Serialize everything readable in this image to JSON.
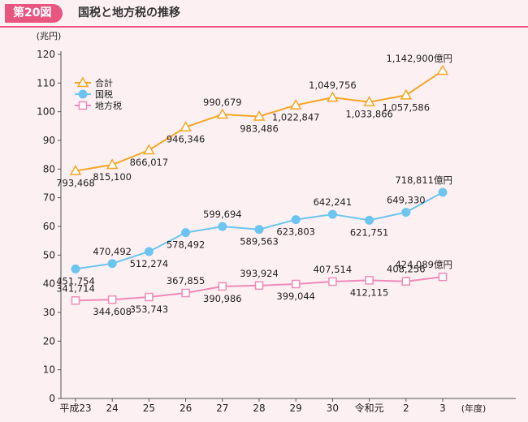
{
  "header": {
    "figure_label": "第20図",
    "title": "国税と地方税の推移"
  },
  "colors": {
    "total": "#f5a623",
    "national": "#6cc5ee",
    "local": "#f08ab8",
    "accent": "#e8557f"
  },
  "chart_data": {
    "type": "line",
    "title": "国税と地方税の推移",
    "ylabel": "(兆円)",
    "xlabel": "(年度)",
    "ylim": [
      0,
      120
    ],
    "yticks": [
      0,
      10,
      20,
      30,
      40,
      50,
      60,
      70,
      80,
      90,
      100,
      110,
      120
    ],
    "categories": [
      "平成23",
      "24",
      "25",
      "26",
      "27",
      "28",
      "29",
      "30",
      "令和元",
      "2",
      "3"
    ],
    "series": [
      {
        "name": "合計",
        "marker": "triangle",
        "values": [
          79.3468,
          81.51,
          86.6017,
          94.6346,
          99.0679,
          98.3486,
          102.2847,
          104.9756,
          103.3866,
          105.7586,
          114.29
        ],
        "labels": [
          "793,468",
          "815,100",
          "866,017",
          "946,346",
          "990,679",
          "983,486",
          "1,022,847",
          "1,049,756",
          "1,033,866",
          "1,057,586",
          "1,142,900億円"
        ]
      },
      {
        "name": "国税",
        "marker": "circle",
        "values": [
          45.1754,
          47.0492,
          51.2274,
          57.8492,
          59.9694,
          58.9563,
          62.3803,
          64.2241,
          62.1751,
          64.933,
          71.8811
        ],
        "labels": [
          "451,754",
          "470,492",
          "512,274",
          "578,492",
          "599,694",
          "589,563",
          "623,803",
          "642,241",
          "621,751",
          "649,330",
          "718,811億円"
        ]
      },
      {
        "name": "地方税",
        "marker": "square",
        "values": [
          34.1714,
          34.4608,
          35.3743,
          36.7855,
          39.0986,
          39.3924,
          39.9044,
          40.7514,
          41.2115,
          40.8256,
          42.4089
        ],
        "labels": [
          "341,714",
          "344,608",
          "353,743",
          "367,855",
          "390,986",
          "393,924",
          "399,044",
          "407,514",
          "412,115",
          "408,256",
          "424,089億円"
        ]
      }
    ],
    "legend_position": "top-left"
  }
}
